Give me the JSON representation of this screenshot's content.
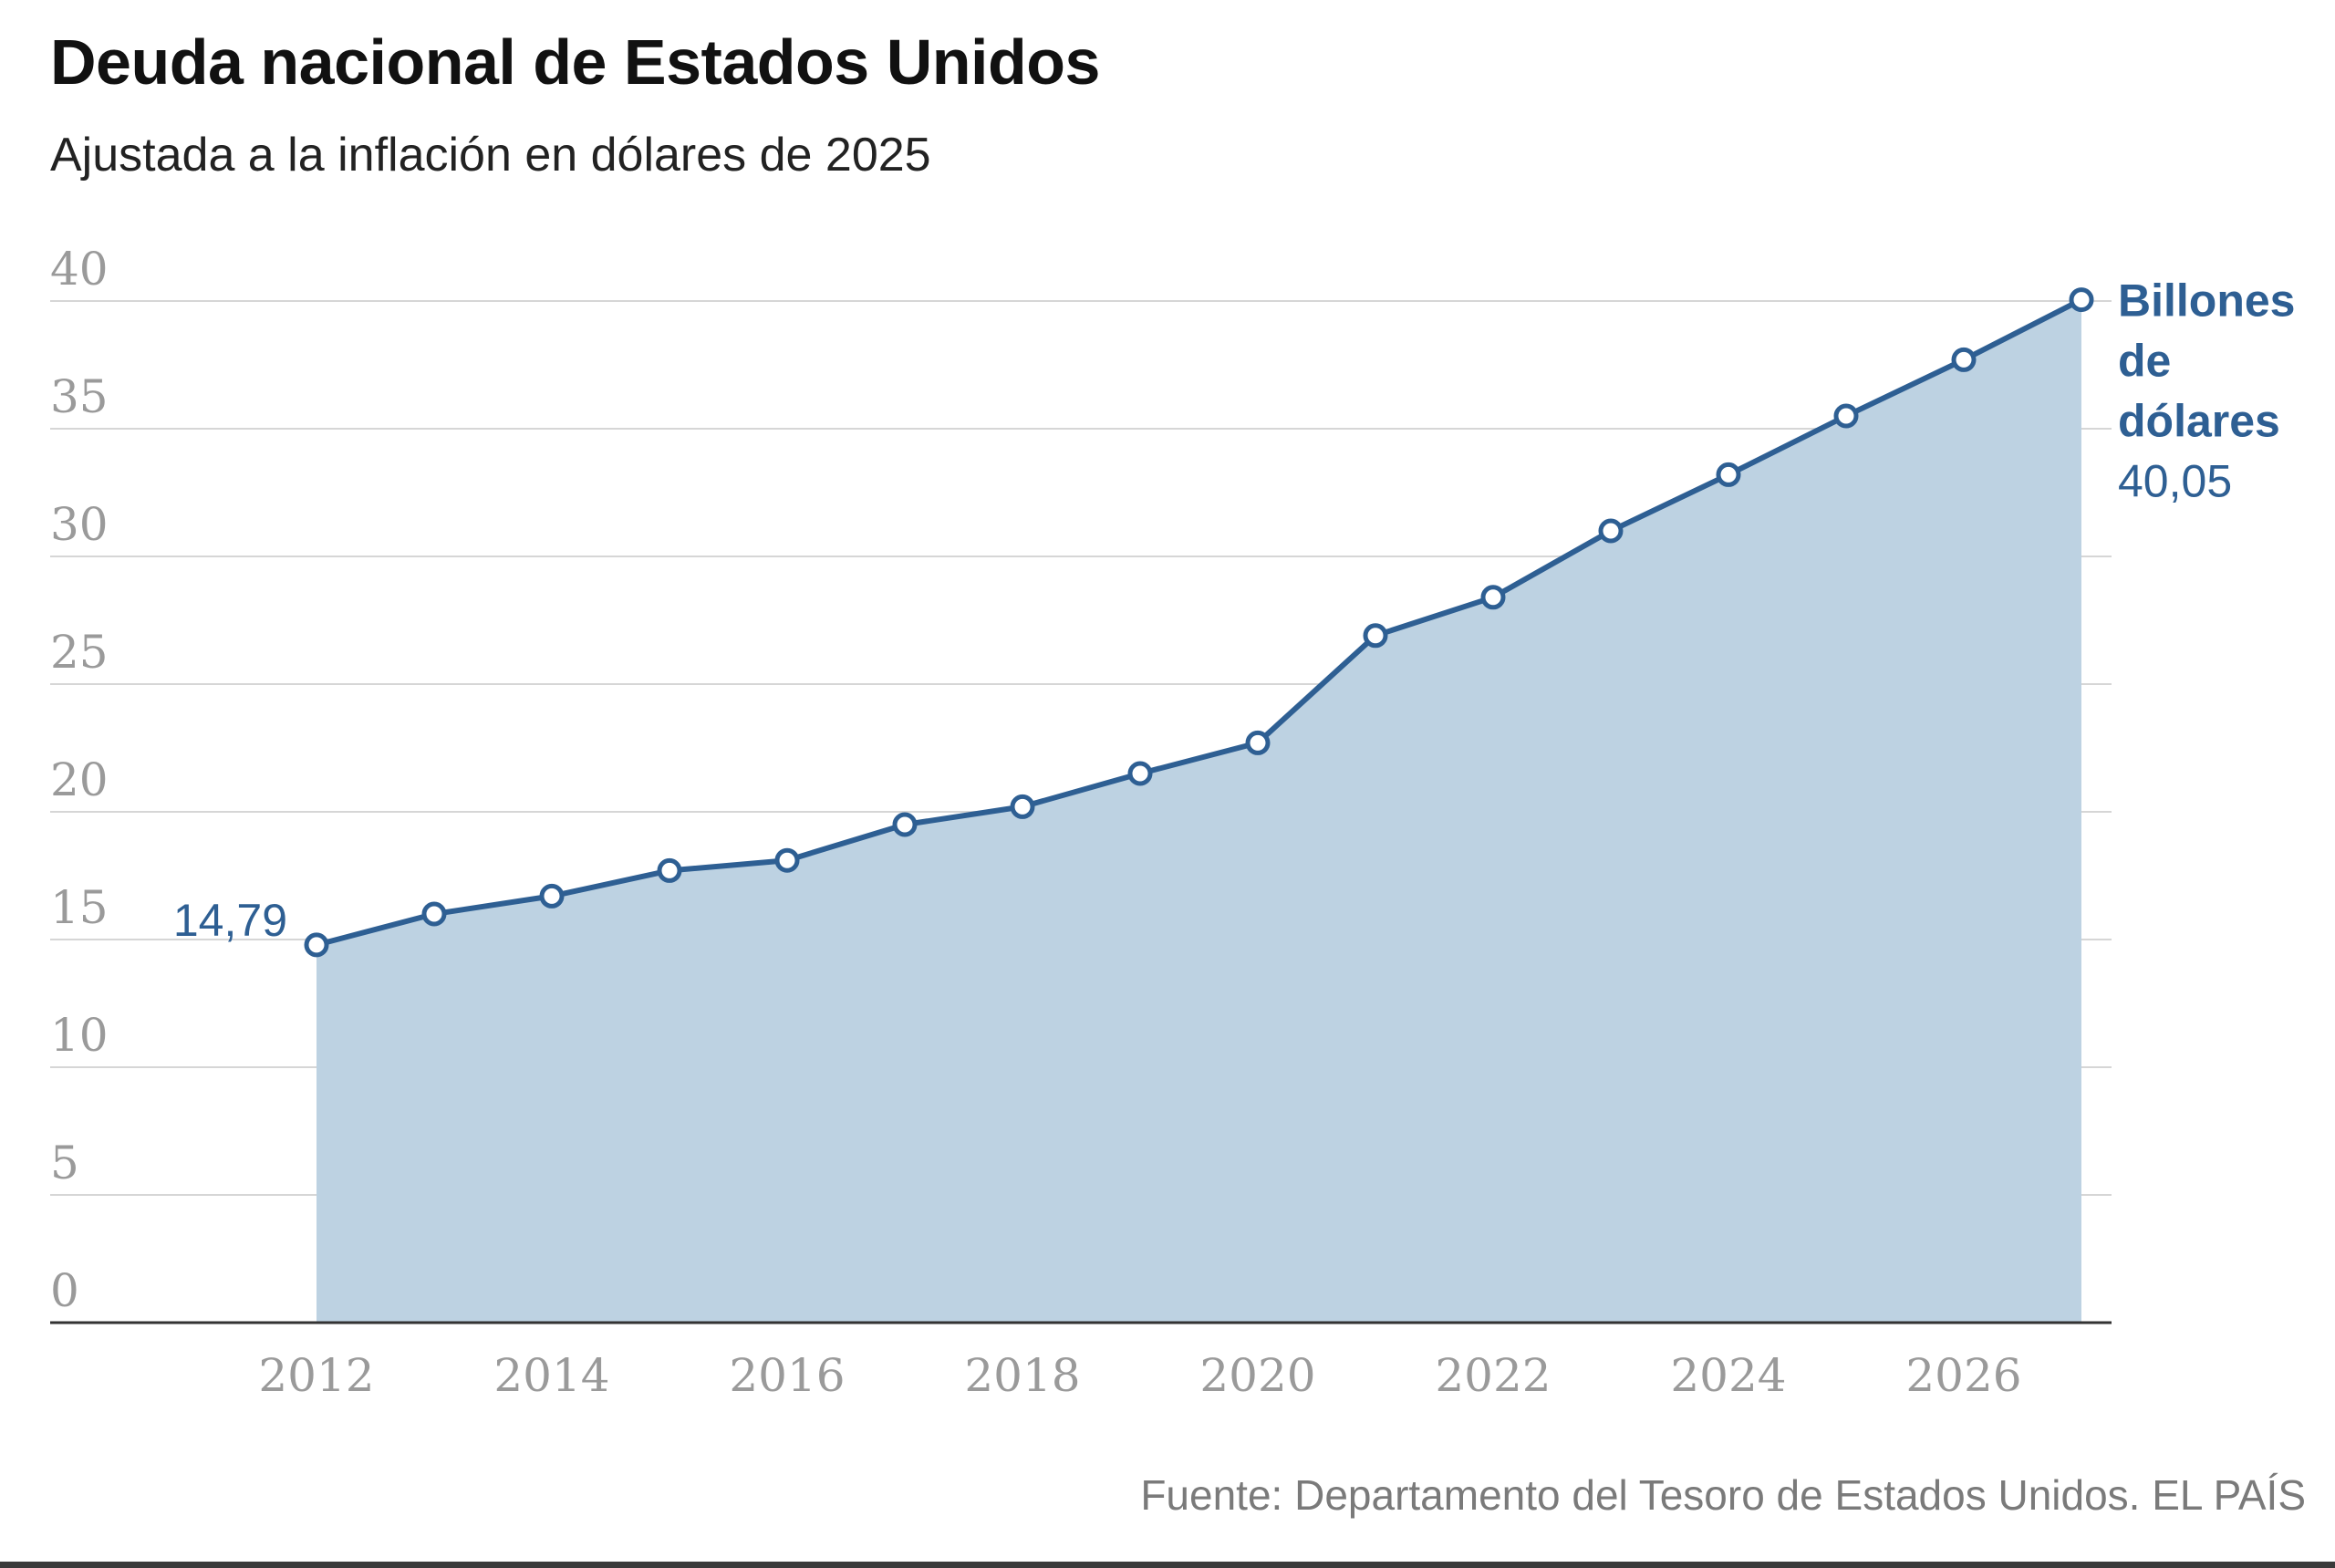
{
  "title": "Deuda nacional de Estados Unidos",
  "subtitle": "Ajustada a la inflación en dólares de 2025",
  "source": "Fuente: Departamento del Tesoro de Estados Unidos. EL PAÍS",
  "colors": {
    "line": "#2e5f93",
    "area": "#bdd2e2",
    "grid": "#d6d6d6",
    "axis": "#333333",
    "tick_text": "#9a9a9a",
    "label": "#2e5f93"
  },
  "chart_data": {
    "type": "area",
    "title": "Deuda nacional de Estados Unidos",
    "subtitle": "Ajustada a la inflación en dólares de 2025",
    "ylim": [
      0,
      40
    ],
    "y_ticks": [
      "0",
      "5",
      "10",
      "15",
      "20",
      "25",
      "30",
      "35",
      "40"
    ],
    "x_tick_labels": [
      "2012",
      "2014",
      "2016",
      "2018",
      "2020",
      "2022",
      "2024",
      "2026"
    ],
    "xlim": [
      2011,
      2028.5
    ],
    "grid": true,
    "series": [
      {
        "name": "Billones de dólares",
        "x": [
          2012,
          2013,
          2014,
          2015,
          2016,
          2017,
          2018,
          2019,
          2020,
          2021,
          2022,
          2023,
          2024,
          2025,
          2026,
          2027
        ],
        "values": [
          14.79,
          16.0,
          16.7,
          17.7,
          18.1,
          19.5,
          20.2,
          21.5,
          22.7,
          26.9,
          28.4,
          31.0,
          33.2,
          35.5,
          37.7,
          40.05
        ]
      }
    ],
    "start_label": "14,79",
    "end_label_lines": [
      "Billones",
      "de",
      "dólares"
    ],
    "end_value_label": "40,05"
  }
}
